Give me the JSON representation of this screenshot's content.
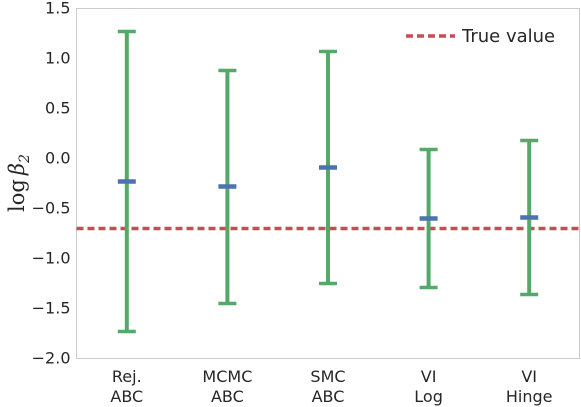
{
  "chart_data": {
    "type": "errorbar",
    "title": "",
    "xlabel": "",
    "ylabel_main": "log",
    "ylabel_sym": "β",
    "ylabel_sub": "2",
    "ylim": [
      -2.0,
      1.5
    ],
    "yticks": [
      1.5,
      1.0,
      0.5,
      0.0,
      -0.5,
      -1.0,
      -1.5,
      -2.0
    ],
    "ytick_labels": [
      "1.5",
      "1.0",
      "0.5",
      "0.0",
      "−0.5",
      "−1.0",
      "−1.5",
      "−2.0"
    ],
    "categories": [
      {
        "line1": "Rej.",
        "line2": "ABC"
      },
      {
        "line1": "MCMC",
        "line2": "ABC"
      },
      {
        "line1": "SMC",
        "line2": "ABC"
      },
      {
        "line1": "VI",
        "line2": "Log"
      },
      {
        "line1": "VI",
        "line2": "Hinge"
      }
    ],
    "estimates": [
      -0.23,
      -0.28,
      -0.09,
      -0.6,
      -0.59
    ],
    "lower": [
      -1.73,
      -1.45,
      -1.25,
      -1.29,
      -1.36
    ],
    "upper": [
      1.27,
      0.88,
      1.07,
      0.09,
      0.18
    ],
    "reference_line": {
      "label": "True value",
      "value": -0.7
    },
    "legend_position": "top-right",
    "grid": false,
    "colors": {
      "interval": "#55a868",
      "estimate": "#4c72b0",
      "reference": "#c44e52",
      "frame": "#cccccc"
    }
  }
}
